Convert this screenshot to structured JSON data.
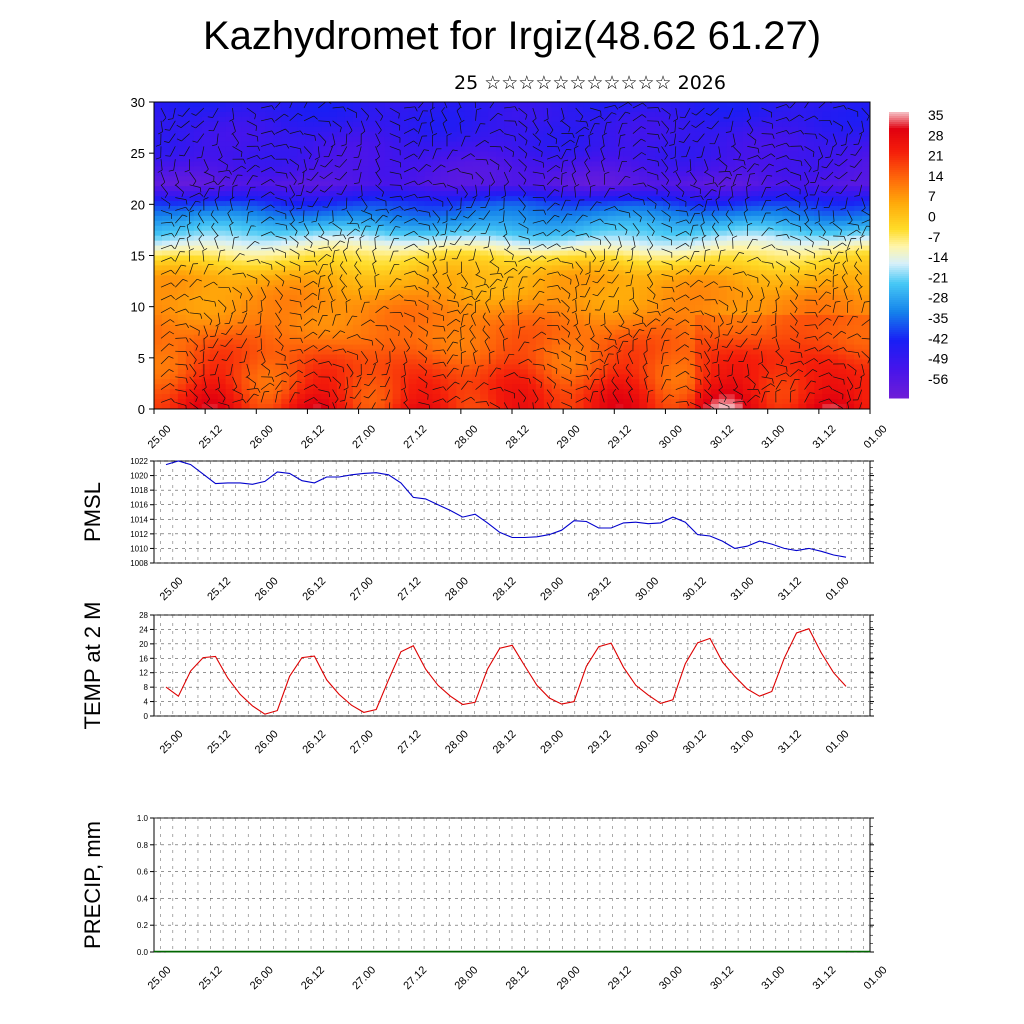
{
  "title": "Kazhydromet for Irgiz(48.62 61.27)",
  "subtitle": "25 ☆☆☆☆☆☆☆☆☆☆☆ 2026",
  "time_labels": [
    "25.00",
    "25.12",
    "26.00",
    "26.12",
    "27.00",
    "27.12",
    "28.00",
    "28.12",
    "29.00",
    "29.12",
    "30.00",
    "30.12",
    "31.00",
    "31.12",
    "01.00"
  ],
  "chart_data": [
    {
      "type": "heatmap",
      "title": "",
      "xlabel": "",
      "ylabel": "",
      "ylim": [
        0,
        30
      ],
      "yticks": [
        "0",
        "5",
        "10",
        "15",
        "20",
        "25",
        "30"
      ],
      "colorbar_labels": [
        "35",
        "28",
        "21",
        "14",
        "7",
        "0",
        "-7",
        "-14",
        "-21",
        "-28",
        "-35",
        "-42",
        "-49",
        "-56"
      ],
      "colorbar_range": [
        -62,
        38
      ],
      "temperature_by_height": [
        {
          "height": 0,
          "temp": 25
        },
        {
          "height": 3,
          "temp": 20
        },
        {
          "height": 8,
          "temp": 13
        },
        {
          "height": 13,
          "temp": 5
        },
        {
          "height": 15,
          "temp": -5
        },
        {
          "height": 17,
          "temp": -20
        },
        {
          "height": 20,
          "temp": -38
        },
        {
          "height": 22,
          "temp": -56
        },
        {
          "height": 25,
          "temp": -50
        },
        {
          "height": 30,
          "temp": -45
        }
      ],
      "wind_barbs": true
    },
    {
      "type": "line",
      "ylabel": "PMSL",
      "ylim": [
        1008,
        1022
      ],
      "yticks": [
        "1008",
        "1010",
        "1012",
        "1014",
        "1016",
        "1018",
        "1020",
        "1022"
      ],
      "series": [
        {
          "name": "PMSL",
          "color": "#0000cc",
          "values": [
            1021.5,
            1022,
            1021.5,
            1020.2,
            1018.9,
            1019,
            1019,
            1018.8,
            1019.2,
            1020.5,
            1020.3,
            1019.3,
            1019,
            1019.8,
            1019.8,
            1020.1,
            1020.3,
            1020.4,
            1020.1,
            1019,
            1017,
            1016.8,
            1016,
            1015.2,
            1014.3,
            1014.7,
            1013.5,
            1012.2,
            1011.5,
            1011.5,
            1011.6,
            1011.9,
            1012.5,
            1013.8,
            1013.7,
            1012.8,
            1012.8,
            1013.5,
            1013.6,
            1013.4,
            1013.5,
            1014.3,
            1013.6,
            1011.9,
            1011.7,
            1011,
            1010,
            1010.3,
            1011,
            1010.6,
            1010,
            1009.7,
            1010,
            1009.6,
            1009.1,
            1008.8
          ]
        }
      ]
    },
    {
      "type": "line",
      "ylabel": "TEMP at 2 M",
      "ylim": [
        0,
        28
      ],
      "yticks": [
        "0",
        "4",
        "8",
        "12",
        "16",
        "20",
        "24",
        "28"
      ],
      "series": [
        {
          "name": "TEMP",
          "color": "#dd0000",
          "values": [
            8,
            5.5,
            12.5,
            16.2,
            16.5,
            10.5,
            6,
            2.8,
            0.5,
            1.5,
            11,
            16.2,
            16.6,
            10,
            6,
            3,
            1,
            1.8,
            10,
            17.8,
            19.5,
            13,
            8.5,
            5.5,
            3.2,
            3.8,
            13,
            18.8,
            19.6,
            14,
            8.5,
            5,
            3.3,
            4,
            13.8,
            19.2,
            20.2,
            13.5,
            8.5,
            5.8,
            3.5,
            4.5,
            14.5,
            20.3,
            21.5,
            15,
            11,
            7.5,
            5.5,
            6.8,
            16,
            23,
            24.2,
            17.5,
            12,
            8.2
          ]
        }
      ]
    },
    {
      "type": "line",
      "ylabel": "PRECIP, mm",
      "ylim": [
        0,
        1.0
      ],
      "yticks": [
        "0.0",
        "0.2",
        "0.4",
        "0.6",
        "0.8",
        "1.0"
      ],
      "series": [
        {
          "name": "PRECIP",
          "color": "#006600",
          "values": [
            0,
            0,
            0,
            0,
            0,
            0,
            0,
            0,
            0,
            0,
            0,
            0,
            0,
            0,
            0,
            0,
            0,
            0,
            0,
            0,
            0,
            0,
            0,
            0,
            0,
            0,
            0,
            0,
            0,
            0,
            0,
            0,
            0,
            0,
            0,
            0,
            0,
            0,
            0,
            0,
            0,
            0,
            0,
            0,
            0,
            0,
            0,
            0,
            0,
            0,
            0,
            0,
            0,
            0,
            0,
            0,
            0
          ]
        }
      ]
    }
  ]
}
